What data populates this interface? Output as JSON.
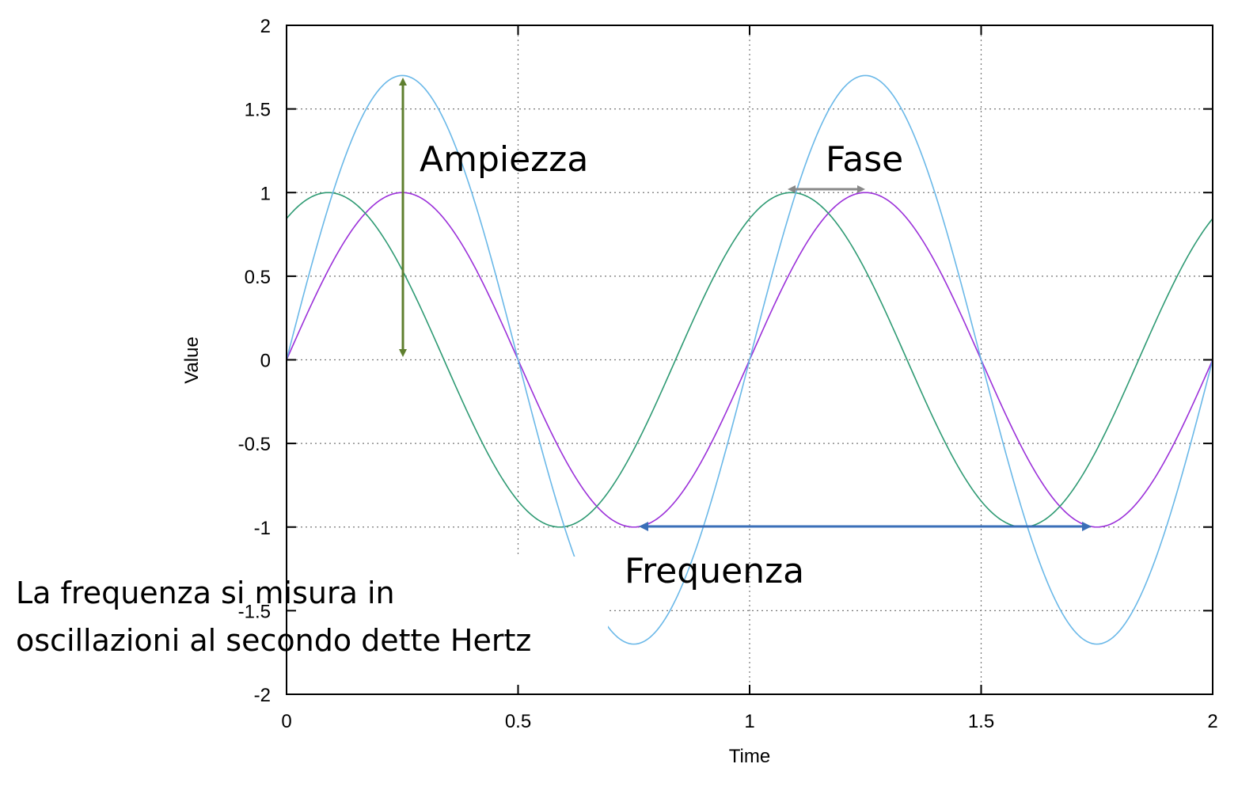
{
  "chart_data": {
    "type": "line",
    "title": "",
    "xlabel": "Time",
    "ylabel": "Value",
    "xlim": [
      0,
      2
    ],
    "ylim": [
      -2,
      2
    ],
    "xticks": [
      0,
      0.5,
      1,
      1.5,
      2
    ],
    "xtick_labels": [
      "0",
      "0.5",
      "1",
      "1.5",
      "2"
    ],
    "yticks": [
      -2,
      -1.5,
      -1,
      -0.5,
      0,
      0.5,
      1,
      1.5,
      2
    ],
    "ytick_labels": [
      "-2",
      "-1.5",
      "-1",
      "-0.5",
      "0",
      "0.5",
      "1",
      "1.5",
      "2"
    ],
    "grid": true,
    "legend": "none",
    "series": [
      {
        "color": "#9b30d9",
        "amplitude": 1,
        "frequency": 1,
        "phase_shift": 0,
        "x": [
          0,
          0.125,
          0.25,
          0.375,
          0.5,
          0.625,
          0.75,
          0.875,
          1,
          1.125,
          1.25,
          1.375,
          1.5,
          1.625,
          1.75,
          1.875,
          2
        ],
        "y": [
          0,
          0.707,
          1,
          0.707,
          0,
          -0.707,
          -1,
          -0.707,
          0,
          0.707,
          1,
          0.707,
          0,
          -0.707,
          -1,
          -0.707,
          0
        ]
      },
      {
        "color": "#2e9a73",
        "amplitude": 1,
        "frequency": 1,
        "phase_shift": 0.16,
        "x": [
          0,
          0.09,
          0.25,
          0.34,
          0.5,
          0.59,
          0.75,
          0.84,
          1,
          1.09,
          1.25,
          1.34,
          1.5,
          1.59,
          1.75,
          1.84,
          2
        ],
        "y": [
          0.84,
          1,
          0.84,
          0.5,
          -0.25,
          -1,
          -0.84,
          -0.5,
          0.84,
          1,
          0.84,
          0.5,
          -0.25,
          -1,
          -0.84,
          -0.5,
          0.84
        ]
      },
      {
        "color": "#6ab8e8",
        "amplitude": 1.7,
        "frequency": 1,
        "phase_shift": 0,
        "x": [
          0,
          0.25,
          0.5,
          0.75,
          1,
          1.25,
          1.5,
          1.75,
          2
        ],
        "y": [
          0,
          1.7,
          0,
          -1.7,
          0,
          1.7,
          0,
          -1.7,
          0
        ]
      }
    ],
    "annotations": [
      {
        "text": "Ampiezza",
        "arrow_color": "#5f7f2f"
      },
      {
        "text": "Fase",
        "arrow_color": "#888888"
      },
      {
        "text": "Frequenza",
        "arrow_color": "#3a6fb8"
      }
    ]
  },
  "caption": {
    "line1": "La frequenza si misura in",
    "line2": "oscillazioni al secondo dette Hertz"
  }
}
